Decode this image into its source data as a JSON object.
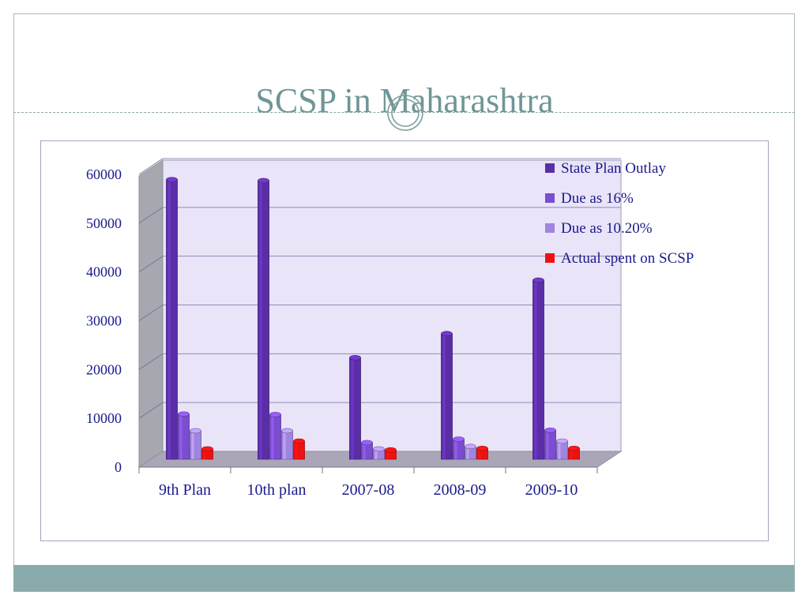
{
  "slide": {
    "title": "SCSP in Maharashtra"
  },
  "colors": {
    "title": "#6f9696",
    "footer_bar": "#8aabab",
    "axis_text": "#1a1a8c",
    "plot_back": "#e9e4f7",
    "plot_floor": "#aaa6b8",
    "plot_side": "#a7a7af"
  },
  "chart_data": {
    "type": "bar",
    "categories": [
      "9th Plan",
      "10th plan",
      "2007-08",
      "2008-09",
      "2009-10"
    ],
    "series": [
      {
        "name": "State Plan Outlay",
        "color": "#5a2ea6",
        "values": [
          57000,
          56800,
          20700,
          25600,
          36500
        ]
      },
      {
        "name": "Due as 16%",
        "color": "#7b4dd0",
        "values": [
          9200,
          9100,
          3400,
          4100,
          5900
        ]
      },
      {
        "name": "Due as 10.20%",
        "color": "#9f85e0",
        "values": [
          5800,
          5800,
          2100,
          2600,
          3700
        ]
      },
      {
        "name": "Actual spent on SCSP",
        "color": "#ee1111",
        "values": [
          2100,
          3700,
          1900,
          2200,
          2200
        ]
      }
    ],
    "y_ticks": [
      "0",
      "10000",
      "20000",
      "30000",
      "40000",
      "50000",
      "60000"
    ],
    "ylim": [
      0,
      60000
    ],
    "grid": true,
    "legend_position": "top-right",
    "title": "",
    "xlabel": "",
    "ylabel": ""
  }
}
